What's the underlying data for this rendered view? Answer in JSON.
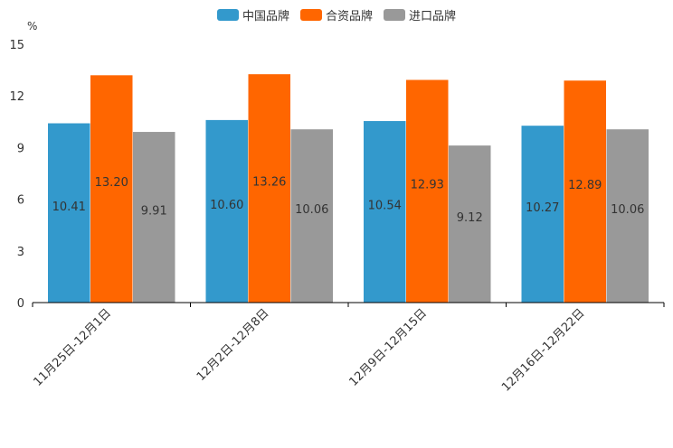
{
  "chart_data": {
    "type": "bar",
    "unit": "%",
    "categories": [
      "11月25日-12月1日",
      "12月2日-12月8日",
      "12月9日-12月15日",
      "12月16日-12月22日"
    ],
    "series": [
      {
        "name": "中国品牌",
        "color": "#3399cc",
        "values": [
          10.41,
          10.6,
          10.54,
          10.27
        ],
        "labels": [
          "10.41",
          "10.60",
          "10.54",
          "10.27"
        ]
      },
      {
        "name": "合资品牌",
        "color": "#ff6600",
        "values": [
          13.2,
          13.26,
          12.93,
          12.89
        ],
        "labels": [
          "13.20",
          "13.26",
          "12.93",
          "12.89"
        ]
      },
      {
        "name": "进口品牌",
        "color": "#999999",
        "values": [
          9.91,
          10.06,
          9.12,
          10.06
        ],
        "labels": [
          "9.91",
          "10.06",
          "9.12",
          "10.06"
        ]
      }
    ],
    "yticks": [
      "0",
      "3",
      "6",
      "9",
      "12",
      "15"
    ],
    "ylim": [
      0,
      15
    ],
    "legend_position": "top-center"
  }
}
